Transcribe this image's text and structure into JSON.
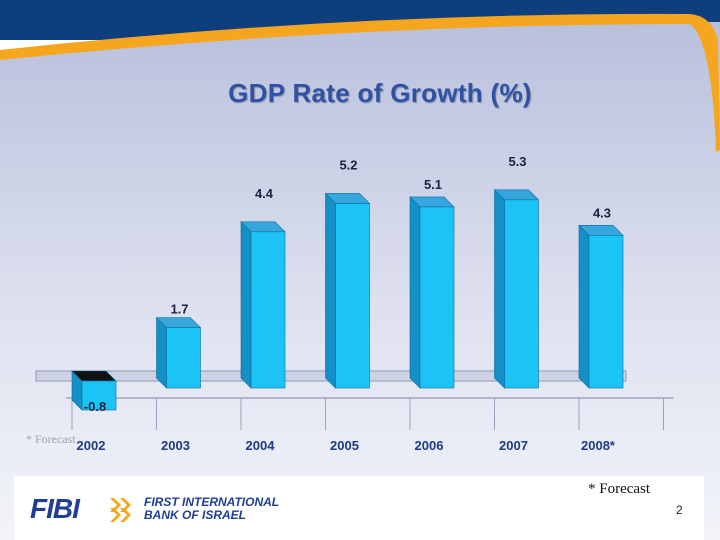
{
  "slide": {
    "title": "GDP Rate of Growth (%)",
    "forecast_note": "* Forecast",
    "faint_note": "* Forecast",
    "page_number": "2",
    "logo": {
      "wordmark": "FIBI",
      "bank_line1": "FIRST INTERNATIONAL",
      "bank_line2": "BANK OF ISRAEL"
    }
  },
  "colors": {
    "bar_front": "#1cc4f5",
    "bar_side": "#1590c7",
    "bar_top": "#35a7dd",
    "negative_top": "#111111",
    "title": "#2f52a6",
    "brand_blue": "#1f3e96",
    "accent_orange": "#f6a51e"
  },
  "chart_data": {
    "type": "bar",
    "title": "GDP Rate of Growth (%)",
    "categories": [
      "2002",
      "2003",
      "2004",
      "2005",
      "2006",
      "2007",
      "2008*"
    ],
    "values": [
      -0.8,
      1.7,
      4.4,
      5.2,
      5.1,
      5.3,
      4.3
    ],
    "labels": [
      "-0.8",
      "1.7",
      "4.4",
      "5.2",
      "5.1",
      "5.3",
      "4.3"
    ],
    "xlabel": "",
    "ylabel": "",
    "ylim": [
      -1,
      5.5
    ],
    "grid": false,
    "legend": "none"
  }
}
